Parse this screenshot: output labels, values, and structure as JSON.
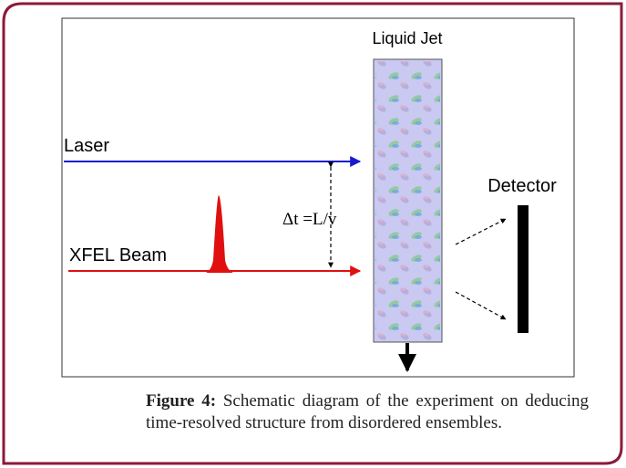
{
  "figure": {
    "labels": {
      "liquid_jet": "Liquid Jet",
      "laser": "Laser",
      "xfel_beam": "XFEL Beam",
      "detector": "Detector",
      "delay": "Δt =L/v"
    }
  },
  "caption": {
    "label": "Figure 4:",
    "text": "Schematic diagram of the experiment on deducing time-resolved structure from disordered ensembles."
  }
}
